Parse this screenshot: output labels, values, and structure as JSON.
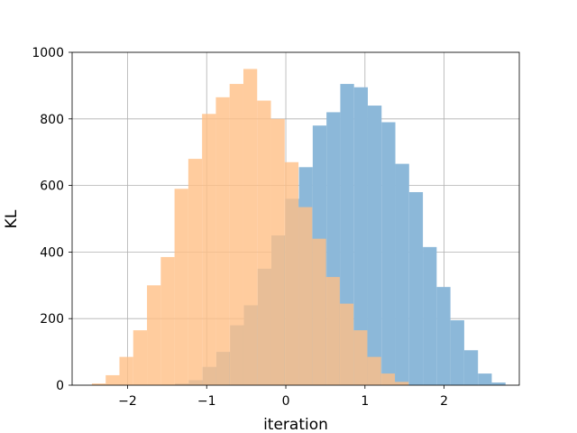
{
  "chart_data": {
    "type": "bar",
    "title": "",
    "xlabel": "iteration",
    "ylabel": "KL",
    "xlim": [
      -2.7,
      2.95
    ],
    "ylim": [
      0,
      1000
    ],
    "xticks": [
      -2,
      -1,
      0,
      1,
      2
    ],
    "xtick_labels": [
      "−2",
      "−1",
      "0",
      "1",
      "2"
    ],
    "yticks": [
      0,
      200,
      400,
      600,
      800,
      1000
    ],
    "ytick_labels": [
      "0",
      "200",
      "400",
      "600",
      "800",
      "1000"
    ],
    "grid": true,
    "legend": "none",
    "series": [
      {
        "color": "#8cb8d9",
        "bin_start": -1.4,
        "bin_width": 0.174,
        "values": [
          5,
          15,
          55,
          100,
          180,
          240,
          350,
          450,
          560,
          655,
          780,
          820,
          905,
          895,
          840,
          790,
          665,
          580,
          415,
          295,
          195,
          105,
          35,
          8
        ]
      },
      {
        "color": "#ffbf86",
        "bin_start": -2.45,
        "bin_width": 0.174,
        "values": [
          5,
          30,
          85,
          165,
          300,
          385,
          590,
          680,
          815,
          865,
          905,
          950,
          855,
          800,
          670,
          535,
          440,
          325,
          245,
          165,
          85,
          35,
          10
        ]
      }
    ]
  }
}
